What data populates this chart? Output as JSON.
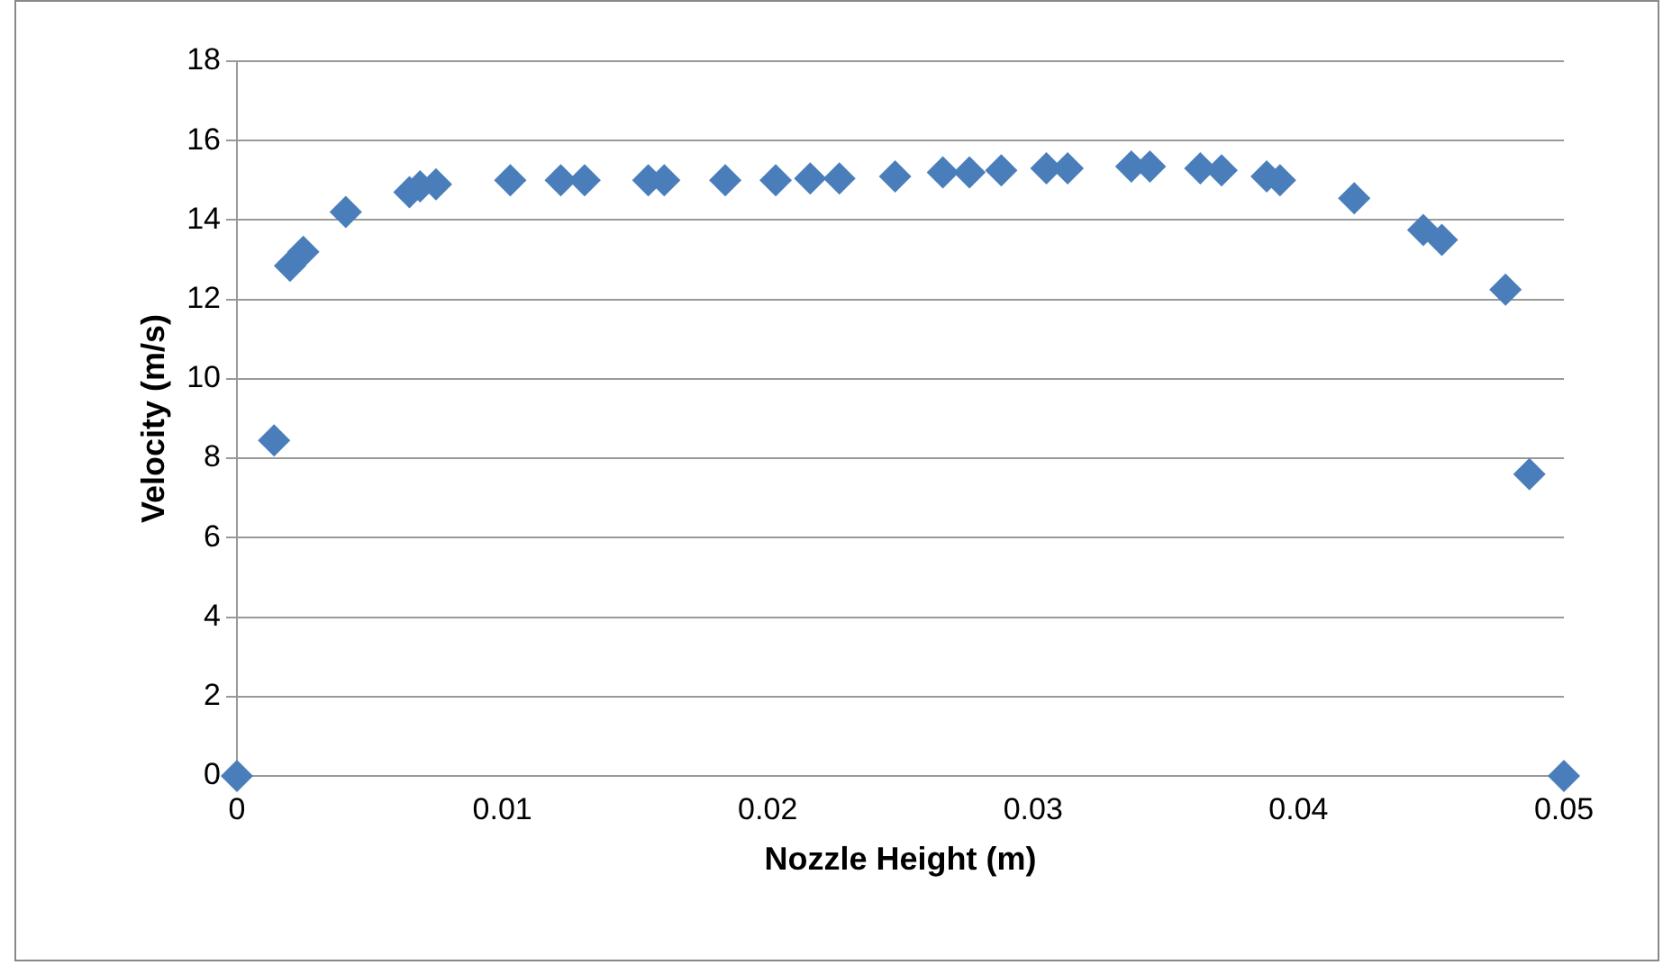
{
  "chart_data": {
    "type": "scatter",
    "xlabel": "Nozzle Height (m)",
    "ylabel": "Velocity (m/s)",
    "xlim": [
      0,
      0.05
    ],
    "xticks": [
      0,
      0.01,
      0.02,
      0.03,
      0.04,
      0.05
    ],
    "ylim": [
      0,
      18
    ],
    "yticks": [
      0,
      2,
      4,
      6,
      8,
      10,
      12,
      14,
      16,
      18
    ],
    "grid": "y",
    "legend": false,
    "marker": "diamond",
    "series": [
      {
        "color": "#4a7ebb",
        "x": [
          0,
          0.0014,
          0.002,
          0.0025,
          0.0041,
          0.0065,
          0.0069,
          0.0075,
          0.0103,
          0.0122,
          0.0131,
          0.0155,
          0.0161,
          0.0184,
          0.0203,
          0.0216,
          0.0227,
          0.0248,
          0.0266,
          0.0276,
          0.0288,
          0.0305,
          0.0313,
          0.0337,
          0.0344,
          0.0363,
          0.0371,
          0.0388,
          0.0393,
          0.0421,
          0.0447,
          0.0454,
          0.0478,
          0.0487,
          0.05
        ],
        "values": [
          0,
          8.45,
          12.85,
          13.2,
          14.2,
          14.7,
          14.85,
          14.9,
          15,
          15,
          15,
          15,
          15,
          15,
          15,
          15.05,
          15.05,
          15.1,
          15.2,
          15.2,
          15.25,
          15.3,
          15.3,
          15.35,
          15.35,
          15.3,
          15.25,
          15.1,
          15,
          14.55,
          13.75,
          13.5,
          12.25,
          7.6,
          0
        ]
      }
    ]
  }
}
